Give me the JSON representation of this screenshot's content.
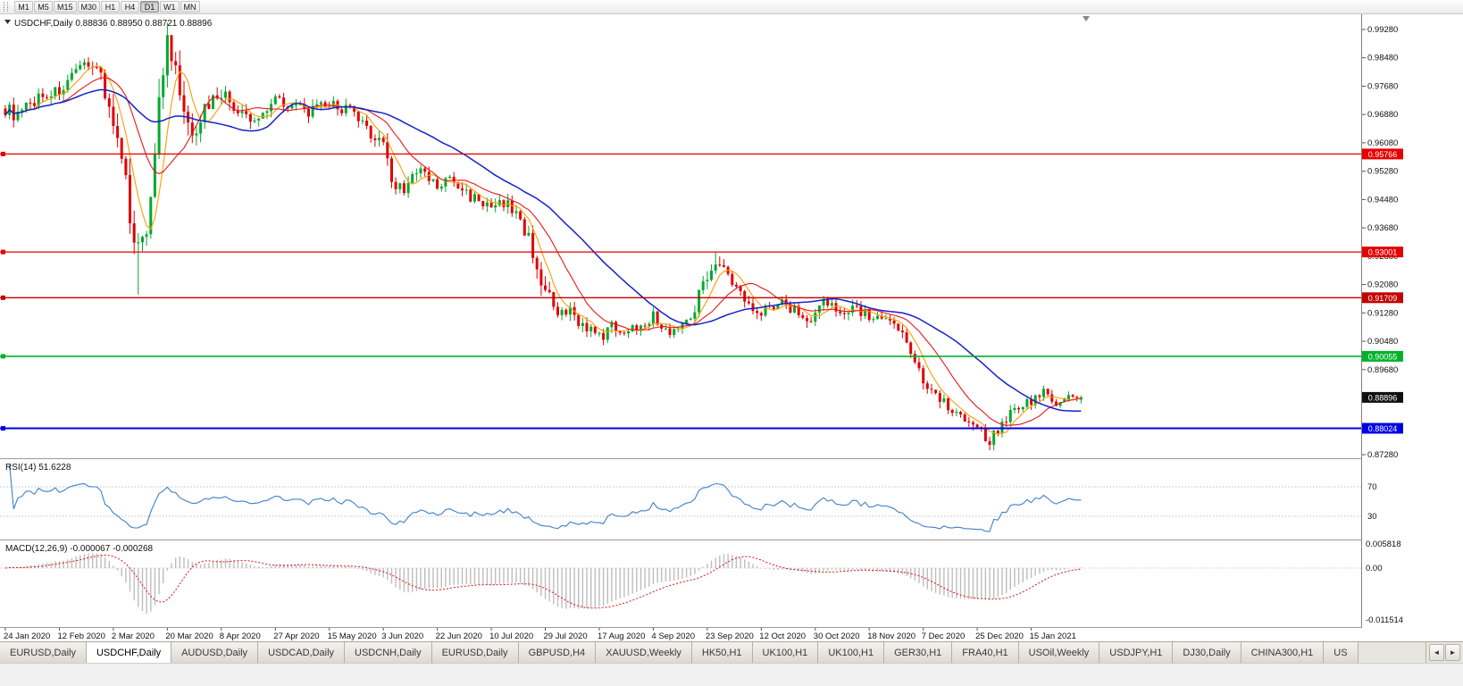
{
  "toolbar": {
    "timeframes": [
      {
        "label": "M1",
        "active": false
      },
      {
        "label": "M5",
        "active": false
      },
      {
        "label": "M15",
        "active": false
      },
      {
        "label": "M30",
        "active": false
      },
      {
        "label": "H1",
        "active": false
      },
      {
        "label": "H4",
        "active": false
      },
      {
        "label": "D1",
        "active": true
      },
      {
        "label": "W1",
        "active": false
      },
      {
        "label": "MN",
        "active": false
      }
    ]
  },
  "chart": {
    "title_line": "USDCHF,Daily 0.88836 0.88950 0.88721 0.88896",
    "symbol": "USDCHF",
    "timeframe": "Daily",
    "price_axis_labels": [
      "0.99280",
      "0.98480",
      "0.97680",
      "0.96880",
      "0.96080",
      "0.95280",
      "0.94480",
      "0.93680",
      "0.92880",
      "0.92080",
      "0.91280",
      "0.90480",
      "0.89680",
      "0.88880",
      "0.88080",
      "0.87280"
    ],
    "levels": [
      {
        "label": "0.95766",
        "value": 0.95766,
        "color": "#e60000",
        "width": 1.3
      },
      {
        "label": "0.93001",
        "value": 0.93001,
        "color": "#e60000",
        "width": 1.3
      },
      {
        "label": "0.91709",
        "value": 0.91709,
        "color": "#c40000",
        "width": 1.3
      },
      {
        "label": "0.90055",
        "value": 0.90055,
        "color": "#00b22c",
        "width": 1.6
      },
      {
        "label": "0.88024",
        "value": 0.88024,
        "color": "#0000e6",
        "width": 2
      }
    ],
    "current_price": {
      "label": "0.88896",
      "value": 0.88896,
      "badge_color": "#101010"
    }
  },
  "rsi": {
    "label_line": "RSI(14) 51.6228",
    "levels": [
      70,
      30
    ],
    "level_labels": [
      "70",
      "30"
    ],
    "line_color": "#3f7fca"
  },
  "macd": {
    "label_line": "MACD(12,26,9) -0.000067 -0.000268",
    "axis_labels": [
      "0.005818",
      "0.00",
      "-0.011514"
    ],
    "hist_color": "#bdbdbd",
    "signal_color": "#e01010"
  },
  "colors": {
    "candle_up": "#00a92e",
    "candle_down": "#e00000",
    "background": "#ffffff",
    "axis_line": "#808080"
  },
  "tabs": {
    "scroll_left_icon": "◄",
    "scroll_right_icon": "►",
    "items": [
      {
        "label": "EURUSD,Daily",
        "active": false
      },
      {
        "label": "USDCHF,Daily",
        "active": true
      },
      {
        "label": "AUDUSD,Daily",
        "active": false
      },
      {
        "label": "USDCAD,Daily",
        "active": false
      },
      {
        "label": "USDCNH,Daily",
        "active": false
      },
      {
        "label": "EURUSD,Daily",
        "active": false
      },
      {
        "label": "GBPUSD,H4",
        "active": false
      },
      {
        "label": "XAUUSD,Weekly",
        "active": false
      },
      {
        "label": "HK50,H1",
        "active": false
      },
      {
        "label": "UK100,H1",
        "active": false
      },
      {
        "label": "UK100,H1",
        "active": false
      },
      {
        "label": "GER30,H1",
        "active": false
      },
      {
        "label": "FRA40,H1",
        "active": false
      },
      {
        "label": "USOil,Weekly",
        "active": false
      },
      {
        "label": "USDJPY,H1",
        "active": false
      },
      {
        "label": "DJ30,Daily",
        "active": false
      },
      {
        "label": "CHINA300,H1",
        "active": false
      },
      {
        "label": "US",
        "active": false
      }
    ]
  },
  "chart_data": {
    "type": "candlestick",
    "symbol": "USDCHF",
    "timeframe": "Daily",
    "num_candles": 260,
    "candles_per_x_tick": 13,
    "x_tick_labels": [
      "24 Jan 2020",
      "12 Feb 2020",
      "2 Mar 2020",
      "20 Mar 2020",
      "8 Apr 2020",
      "27 Apr 2020",
      "15 May 2020",
      "3 Jun 2020",
      "22 Jun 2020",
      "10 Jul 2020",
      "29 Jul 2020",
      "17 Aug 2020",
      "4 Sep 2020",
      "23 Sep 2020",
      "12 Oct 2020",
      "30 Oct 2020",
      "18 Nov 2020",
      "7 Dec 2020",
      "25 Dec 2020",
      "15 Jan 2021"
    ],
    "y_axis": {
      "top": 0.9928,
      "bottom": 0.8728,
      "ticks": [
        0.9928,
        0.9848,
        0.9768,
        0.9688,
        0.9608,
        0.9528,
        0.9448,
        0.9368,
        0.9288,
        0.9208,
        0.9128,
        0.9048,
        0.8968,
        0.8888,
        0.8808,
        0.8728
      ]
    },
    "last_ohlc": {
      "open": 0.88836,
      "high": 0.8895,
      "low": 0.88721,
      "close": 0.88896
    },
    "current_price": 0.88896,
    "horizontal_levels": [
      0.95766,
      0.93001,
      0.91709,
      0.90055,
      0.88024
    ],
    "moving_averages": [
      {
        "period": 6,
        "color": "#ff9c00",
        "width": 1.1
      },
      {
        "period": 14,
        "color": "#e81717",
        "width": 1.1
      },
      {
        "period": 34,
        "color": "#1522c8",
        "width": 1.5
      }
    ],
    "indicators": [
      {
        "name": "RSI",
        "period": 14,
        "value": 51.6228,
        "levels": [
          70,
          30
        ]
      },
      {
        "name": "MACD",
        "fast": 12,
        "slow": 26,
        "signal": 9,
        "value": -6.7e-05,
        "signal_value": -0.000268,
        "scale_max": 0.005818,
        "scale_min": -0.011514
      }
    ],
    "price_path_anchors": [
      [
        0,
        0.9705,
        0.0042
      ],
      [
        3,
        0.9682,
        0.0042
      ],
      [
        8,
        0.9738,
        0.0038
      ],
      [
        13,
        0.9755,
        0.0038
      ],
      [
        17,
        0.9798,
        0.0042
      ],
      [
        20,
        0.9843,
        0.0045
      ],
      [
        23,
        0.9802,
        0.0055
      ],
      [
        26,
        0.966,
        0.0075
      ],
      [
        29,
        0.9478,
        0.0095
      ],
      [
        32,
        0.9302,
        0.0105
      ],
      [
        34,
        0.9378,
        0.011
      ],
      [
        36,
        0.96,
        0.012
      ],
      [
        38,
        0.9818,
        0.0115
      ],
      [
        39,
        0.9875,
        0.01
      ],
      [
        41,
        0.9798,
        0.0095
      ],
      [
        44,
        0.9632,
        0.0085
      ],
      [
        47,
        0.968,
        0.0065
      ],
      [
        50,
        0.9738,
        0.0055
      ],
      [
        52,
        0.9752,
        0.0048
      ],
      [
        56,
        0.9692,
        0.0046
      ],
      [
        60,
        0.9665,
        0.0042
      ],
      [
        65,
        0.974,
        0.0042
      ],
      [
        69,
        0.9712,
        0.0038
      ],
      [
        73,
        0.9695,
        0.0038
      ],
      [
        78,
        0.9716,
        0.0038
      ],
      [
        83,
        0.97,
        0.0038
      ],
      [
        87,
        0.9642,
        0.0042
      ],
      [
        91,
        0.9612,
        0.0045
      ],
      [
        93,
        0.9498,
        0.0058
      ],
      [
        96,
        0.9482,
        0.0048
      ],
      [
        100,
        0.953,
        0.0042
      ],
      [
        104,
        0.9481,
        0.004
      ],
      [
        107,
        0.9506,
        0.0038
      ],
      [
        111,
        0.9464,
        0.0038
      ],
      [
        114,
        0.945,
        0.0038
      ],
      [
        117,
        0.9415,
        0.004
      ],
      [
        120,
        0.9442,
        0.004
      ],
      [
        124,
        0.9395,
        0.0044
      ],
      [
        127,
        0.9302,
        0.0058
      ],
      [
        130,
        0.9186,
        0.0062
      ],
      [
        133,
        0.9112,
        0.0052
      ],
      [
        136,
        0.913,
        0.0044
      ],
      [
        139,
        0.9096,
        0.004
      ],
      [
        143,
        0.9056,
        0.0038
      ],
      [
        146,
        0.909,
        0.0036
      ],
      [
        150,
        0.9076,
        0.0036
      ],
      [
        153,
        0.91,
        0.0036
      ],
      [
        156,
        0.9119,
        0.0036
      ],
      [
        159,
        0.9076,
        0.0036
      ],
      [
        163,
        0.909,
        0.0036
      ],
      [
        166,
        0.9148,
        0.0042
      ],
      [
        169,
        0.9238,
        0.005
      ],
      [
        171,
        0.9283,
        0.005
      ],
      [
        174,
        0.923,
        0.0044
      ],
      [
        178,
        0.9162,
        0.004
      ],
      [
        182,
        0.9136,
        0.0038
      ],
      [
        186,
        0.9158,
        0.0036
      ],
      [
        190,
        0.914,
        0.0036
      ],
      [
        193,
        0.9106,
        0.0038
      ],
      [
        195,
        0.9124,
        0.004
      ],
      [
        197,
        0.9163,
        0.004
      ],
      [
        200,
        0.913,
        0.0038
      ],
      [
        204,
        0.915,
        0.0036
      ],
      [
        208,
        0.9116,
        0.0036
      ],
      [
        212,
        0.91,
        0.0034
      ],
      [
        215,
        0.9086,
        0.0034
      ],
      [
        218,
        0.903,
        0.004
      ],
      [
        221,
        0.8926,
        0.0044
      ],
      [
        224,
        0.8906,
        0.0038
      ],
      [
        228,
        0.8856,
        0.0038
      ],
      [
        231,
        0.8836,
        0.0036
      ],
      [
        234,
        0.8806,
        0.0036
      ],
      [
        237,
        0.8766,
        0.0038
      ],
      [
        240,
        0.8824,
        0.0034
      ],
      [
        243,
        0.8856,
        0.0032
      ],
      [
        247,
        0.888,
        0.003
      ],
      [
        250,
        0.8906,
        0.0028
      ],
      [
        253,
        0.8872,
        0.0026
      ],
      [
        256,
        0.889,
        0.0024
      ],
      [
        259,
        0.88896,
        0.0022
      ]
    ],
    "special_wicks": [
      {
        "i": 32,
        "low": 0.918
      },
      {
        "i": 39,
        "high": 0.9905
      },
      {
        "i": 171,
        "high": 0.93
      },
      {
        "i": 237,
        "low": 0.874
      }
    ]
  }
}
